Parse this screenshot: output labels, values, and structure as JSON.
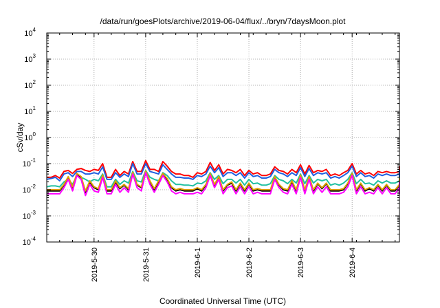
{
  "chart_data": {
    "type": "line",
    "title": "/data/run/goesPlots/archive/2019-06-04/flux/../bryn/7daysMoon.plot",
    "xlabel": "Coordinated Universal Time (UTC)",
    "ylabel": "cSv/day",
    "y_scale": "log",
    "ylim": [
      0.0001,
      10000
    ],
    "xlim": [
      "2019-05-29T02:00",
      "2019-06-04T22:00"
    ],
    "x_ticks": [
      "2019-5-30",
      "2019-5-31",
      "2019-6-1",
      "2019-6-2",
      "2019-6-3",
      "2019-6-4"
    ],
    "x_tick_dates": [
      "2019-05-30T00:00",
      "2019-05-31T00:00",
      "2019-06-01T00:00",
      "2019-06-02T00:00",
      "2019-06-03T00:00",
      "2019-06-04T00:00"
    ],
    "y_ticks": [
      {
        "base": "10",
        "exp": "-4"
      },
      {
        "base": "10",
        "exp": "-3"
      },
      {
        "base": "10",
        "exp": "-2"
      },
      {
        "base": "10",
        "exp": "-1"
      },
      {
        "base": "10",
        "exp": "0"
      },
      {
        "base": "10",
        "exp": "1"
      },
      {
        "base": "10",
        "exp": "2"
      },
      {
        "base": "10",
        "exp": "3"
      },
      {
        "base": "10",
        "exp": "4"
      }
    ],
    "grid": true,
    "legend": "none",
    "sample_interval_hours": 2,
    "series": [
      {
        "color": "#ff0000",
        "values": [
          0.03,
          0.03,
          0.035,
          0.028,
          0.05,
          0.055,
          0.042,
          0.06,
          0.065,
          0.055,
          0.05,
          0.06,
          0.055,
          0.1,
          0.03,
          0.03,
          0.06,
          0.035,
          0.05,
          0.04,
          0.12,
          0.05,
          0.05,
          0.13,
          0.06,
          0.06,
          0.05,
          0.12,
          0.08,
          0.05,
          0.04,
          0.04,
          0.035,
          0.035,
          0.03,
          0.045,
          0.04,
          0.05,
          0.11,
          0.055,
          0.09,
          0.04,
          0.06,
          0.055,
          0.045,
          0.06,
          0.035,
          0.055,
          0.04,
          0.045,
          0.035,
          0.035,
          0.04,
          0.075,
          0.055,
          0.05,
          0.04,
          0.06,
          0.045,
          0.09,
          0.04,
          0.085,
          0.045,
          0.055,
          0.05,
          0.06,
          0.035,
          0.04,
          0.035,
          0.045,
          0.055,
          0.1,
          0.04,
          0.055,
          0.04,
          0.045,
          0.035,
          0.05,
          0.045,
          0.05,
          0.045,
          0.045,
          0.05,
          0.048,
          0.055,
          0.05,
          0.045,
          0.06,
          0.055,
          0.05,
          0.06,
          0.055,
          0.065,
          0.06,
          0.055,
          0.065,
          0.07,
          0.06,
          0.035,
          0.04,
          0.04,
          0.045,
          0.055,
          0.06,
          0.045,
          0.06,
          0.055,
          0.065,
          0.06,
          0.05,
          0.055,
          0.06,
          0.06,
          0.06,
          0.05,
          0.055,
          0.075,
          0.06,
          0.07,
          0.065
        ]
      },
      {
        "color": "#1f5fe0",
        "values": [
          0.025,
          0.027,
          0.03,
          0.022,
          0.04,
          0.045,
          0.032,
          0.05,
          0.05,
          0.04,
          0.04,
          0.045,
          0.04,
          0.075,
          0.025,
          0.025,
          0.045,
          0.03,
          0.04,
          0.032,
          0.1,
          0.04,
          0.04,
          0.1,
          0.05,
          0.045,
          0.04,
          0.09,
          0.06,
          0.04,
          0.03,
          0.03,
          0.028,
          0.028,
          0.025,
          0.035,
          0.032,
          0.04,
          0.08,
          0.045,
          0.07,
          0.032,
          0.045,
          0.045,
          0.035,
          0.045,
          0.028,
          0.045,
          0.032,
          0.035,
          0.028,
          0.028,
          0.032,
          0.06,
          0.045,
          0.04,
          0.032,
          0.045,
          0.035,
          0.07,
          0.032,
          0.065,
          0.035,
          0.045,
          0.04,
          0.045,
          0.028,
          0.032,
          0.028,
          0.035,
          0.045,
          0.08,
          0.032,
          0.045,
          0.032,
          0.035,
          0.028,
          0.04,
          0.035,
          0.04,
          0.035,
          0.035,
          0.04,
          0.038,
          0.045,
          0.04,
          0.035,
          0.045,
          0.045,
          0.04,
          0.045,
          0.04,
          0.05,
          0.045,
          0.04,
          0.05,
          0.05,
          0.045,
          0.028,
          0.032,
          0.032,
          0.035,
          0.045,
          0.045,
          0.035,
          0.045,
          0.045,
          0.05,
          0.045,
          0.04,
          0.045,
          0.045,
          0.045,
          0.045,
          0.04,
          0.045,
          0.055,
          0.045,
          0.05,
          0.05
        ]
      },
      {
        "color": "#20c0a0",
        "values": [
          0.013,
          0.014,
          0.014,
          0.013,
          0.02,
          0.025,
          0.016,
          0.035,
          0.03,
          0.025,
          0.02,
          0.025,
          0.022,
          0.04,
          0.013,
          0.013,
          0.025,
          0.016,
          0.022,
          0.018,
          0.05,
          0.022,
          0.02,
          0.055,
          0.03,
          0.025,
          0.022,
          0.045,
          0.035,
          0.022,
          0.016,
          0.016,
          0.015,
          0.015,
          0.014,
          0.018,
          0.017,
          0.022,
          0.045,
          0.025,
          0.035,
          0.017,
          0.025,
          0.025,
          0.018,
          0.025,
          0.015,
          0.025,
          0.017,
          0.018,
          0.015,
          0.015,
          0.017,
          0.035,
          0.025,
          0.022,
          0.017,
          0.025,
          0.018,
          0.04,
          0.017,
          0.035,
          0.018,
          0.025,
          0.022,
          0.025,
          0.015,
          0.017,
          0.015,
          0.018,
          0.025,
          0.045,
          0.017,
          0.025,
          0.017,
          0.018,
          0.015,
          0.022,
          0.018,
          0.022,
          0.018,
          0.018,
          0.022,
          0.02,
          0.025,
          0.022,
          0.018,
          0.025,
          0.025,
          0.022,
          0.025,
          0.022,
          0.028,
          0.025,
          0.022,
          0.028,
          0.028,
          0.025,
          0.015,
          0.017,
          0.017,
          0.018,
          0.025,
          0.025,
          0.018,
          0.025,
          0.025,
          0.028,
          0.025,
          0.022,
          0.025,
          0.025,
          0.025,
          0.025,
          0.022,
          0.025,
          0.03,
          0.025,
          0.028,
          0.028
        ]
      },
      {
        "color": "#000000",
        "values": [
          0.009,
          0.009,
          0.009,
          0.009,
          0.015,
          0.03,
          0.012,
          0.04,
          0.03,
          0.008,
          0.02,
          0.012,
          0.01,
          0.035,
          0.009,
          0.009,
          0.02,
          0.011,
          0.015,
          0.01,
          0.045,
          0.015,
          0.012,
          0.05,
          0.02,
          0.01,
          0.02,
          0.04,
          0.025,
          0.012,
          0.009,
          0.01,
          0.009,
          0.009,
          0.009,
          0.011,
          0.009,
          0.015,
          0.04,
          0.015,
          0.03,
          0.009,
          0.015,
          0.018,
          0.009,
          0.017,
          0.009,
          0.017,
          0.009,
          0.01,
          0.009,
          0.009,
          0.009,
          0.03,
          0.015,
          0.01,
          0.009,
          0.02,
          0.009,
          0.035,
          0.009,
          0.03,
          0.009,
          0.017,
          0.011,
          0.017,
          0.009,
          0.009,
          0.009,
          0.01,
          0.017,
          0.04,
          0.009,
          0.017,
          0.009,
          0.011,
          0.009,
          0.015,
          0.009,
          0.015,
          0.009,
          0.009,
          0.015,
          0.011,
          0.02,
          0.012,
          0.009,
          0.02,
          0.017,
          0.012,
          0.02,
          0.012,
          0.025,
          0.017,
          0.01,
          0.025,
          0.022,
          0.017,
          0.009,
          0.01,
          0.009,
          0.01,
          0.017,
          0.017,
          0.009,
          0.017,
          0.017,
          0.025,
          0.017,
          0.012,
          0.017,
          0.017,
          0.017,
          0.017,
          0.012,
          0.015,
          0.025,
          0.017,
          0.02,
          0.018
        ]
      },
      {
        "color": "#e0a000",
        "values": [
          0.01,
          0.01,
          0.01,
          0.01,
          0.016,
          0.032,
          0.013,
          0.042,
          0.032,
          0.009,
          0.022,
          0.013,
          0.011,
          0.037,
          0.01,
          0.01,
          0.022,
          0.012,
          0.016,
          0.011,
          0.047,
          0.016,
          0.013,
          0.052,
          0.022,
          0.011,
          0.022,
          0.042,
          0.027,
          0.013,
          0.01,
          0.011,
          0.01,
          0.01,
          0.01,
          0.012,
          0.01,
          0.016,
          0.042,
          0.016,
          0.032,
          0.01,
          0.016,
          0.02,
          0.01,
          0.018,
          0.01,
          0.018,
          0.01,
          0.011,
          0.01,
          0.01,
          0.01,
          0.032,
          0.016,
          0.011,
          0.01,
          0.022,
          0.01,
          0.037,
          0.01,
          0.032,
          0.01,
          0.018,
          0.012,
          0.018,
          0.01,
          0.01,
          0.01,
          0.011,
          0.018,
          0.042,
          0.01,
          0.018,
          0.01,
          0.012,
          0.01,
          0.016,
          0.01,
          0.016,
          0.01,
          0.01,
          0.016,
          0.012,
          0.022,
          0.013,
          0.01,
          0.022,
          0.018,
          0.013,
          0.022,
          0.013,
          0.027,
          0.018,
          0.011,
          0.027,
          0.024,
          0.018,
          0.01,
          0.011,
          0.01,
          0.011,
          0.018,
          0.018,
          0.01,
          0.018,
          0.018,
          0.027,
          0.018,
          0.013,
          0.018,
          0.018,
          0.018,
          0.018,
          0.013,
          0.016,
          0.027,
          0.018,
          0.022,
          0.02
        ]
      },
      {
        "color": "#ff00ff",
        "values": [
          0.007,
          0.007,
          0.007,
          0.007,
          0.012,
          0.025,
          0.009,
          0.035,
          0.025,
          0.006,
          0.016,
          0.009,
          0.008,
          0.03,
          0.007,
          0.007,
          0.016,
          0.008,
          0.012,
          0.008,
          0.04,
          0.012,
          0.009,
          0.045,
          0.016,
          0.008,
          0.016,
          0.035,
          0.02,
          0.009,
          0.007,
          0.008,
          0.007,
          0.007,
          0.007,
          0.008,
          0.007,
          0.012,
          0.035,
          0.012,
          0.025,
          0.007,
          0.012,
          0.014,
          0.007,
          0.013,
          0.007,
          0.013,
          0.007,
          0.008,
          0.007,
          0.007,
          0.007,
          0.025,
          0.012,
          0.008,
          0.007,
          0.016,
          0.007,
          0.03,
          0.007,
          0.025,
          0.007,
          0.013,
          0.008,
          0.013,
          0.007,
          0.007,
          0.007,
          0.008,
          0.013,
          0.035,
          0.007,
          0.013,
          0.007,
          0.008,
          0.007,
          0.012,
          0.007,
          0.012,
          0.007,
          0.007,
          0.012,
          0.008,
          0.016,
          0.009,
          0.007,
          0.016,
          0.013,
          0.009,
          0.016,
          0.009,
          0.02,
          0.013,
          0.008,
          0.02,
          0.018,
          0.013,
          0.007,
          0.008,
          0.007,
          0.008,
          0.013,
          0.013,
          0.007,
          0.013,
          0.013,
          0.02,
          0.013,
          0.009,
          0.013,
          0.013,
          0.013,
          0.013,
          0.009,
          0.012,
          0.02,
          0.013,
          0.016,
          0.014
        ]
      }
    ]
  }
}
